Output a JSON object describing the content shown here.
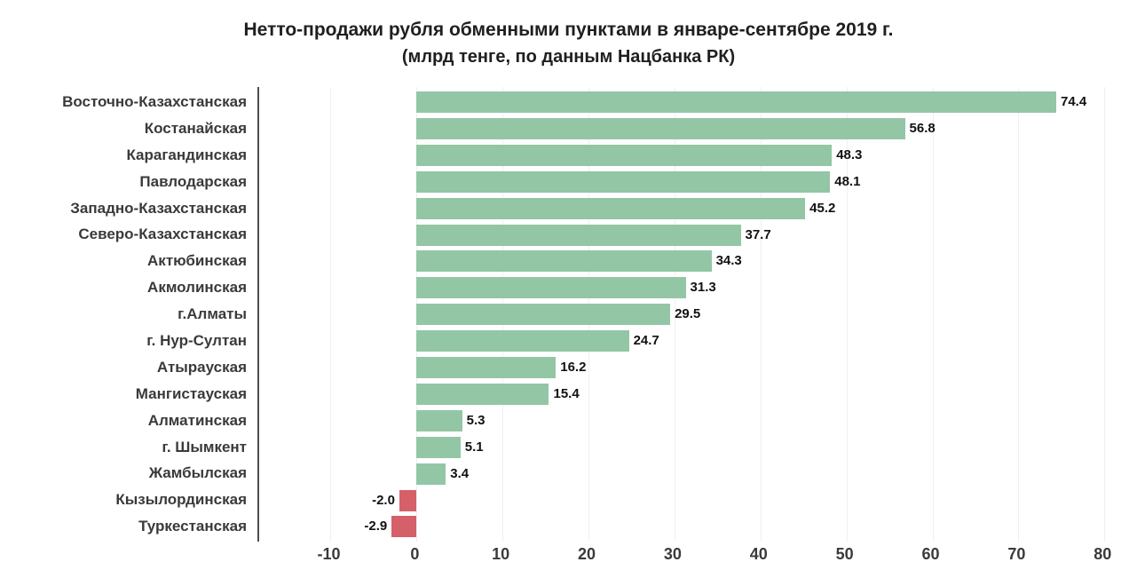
{
  "title": "Нетто-продажи рубля обменными пунктами в январе-сентябре 2019 г.",
  "subtitle": "(млрд тенге, по данным Нацбанка РК)",
  "colors": {
    "positive_bar": "#93c6a5",
    "negative_bar": "#d5606a",
    "axis_line": "#4d4d4d",
    "gridline": "#f0f0f0",
    "category_text": "#3a3a3a",
    "value_text": "#111111"
  },
  "chart_data": {
    "type": "bar",
    "orientation": "horizontal",
    "title": "Нетто-продажи рубля обменными пунктами в январе-сентябре 2019 г.",
    "subtitle": "(млрд тенге, по данным Нацбанка РК)",
    "xlabel": "",
    "ylabel": "",
    "xlim": [
      -10,
      80
    ],
    "xticks": [
      -10,
      0,
      10,
      20,
      30,
      40,
      50,
      60,
      70,
      80
    ],
    "grid": true,
    "legend": false,
    "categories": [
      "Восточно-Казахстанская",
      "Костанайская",
      "Карагандинская",
      "Павлодарская",
      "Западно-Казахстанская",
      "Северо-Казахстанская",
      "Актюбинская",
      "Акмолинская",
      "г.Алматы",
      "г. Нур-Султан",
      "Атырауская",
      "Мангистауская",
      "Алматинская",
      "г. Шымкент",
      "Жамбылская",
      "Кызылординская",
      "Туркестанская"
    ],
    "values": [
      74.4,
      56.8,
      48.3,
      48.1,
      45.2,
      37.7,
      34.3,
      31.3,
      29.5,
      24.7,
      16.2,
      15.4,
      5.3,
      5.1,
      3.4,
      -2.0,
      -2.9
    ],
    "value_labels": [
      "74.4",
      "56.8",
      "48.3",
      "48.1",
      "45.2",
      "37.7",
      "34.3",
      "31.3",
      "29.5",
      "24.7",
      "16.2",
      "15.4",
      "5.3",
      "5.1",
      "3.4",
      "-2.0",
      "-2.9"
    ]
  }
}
